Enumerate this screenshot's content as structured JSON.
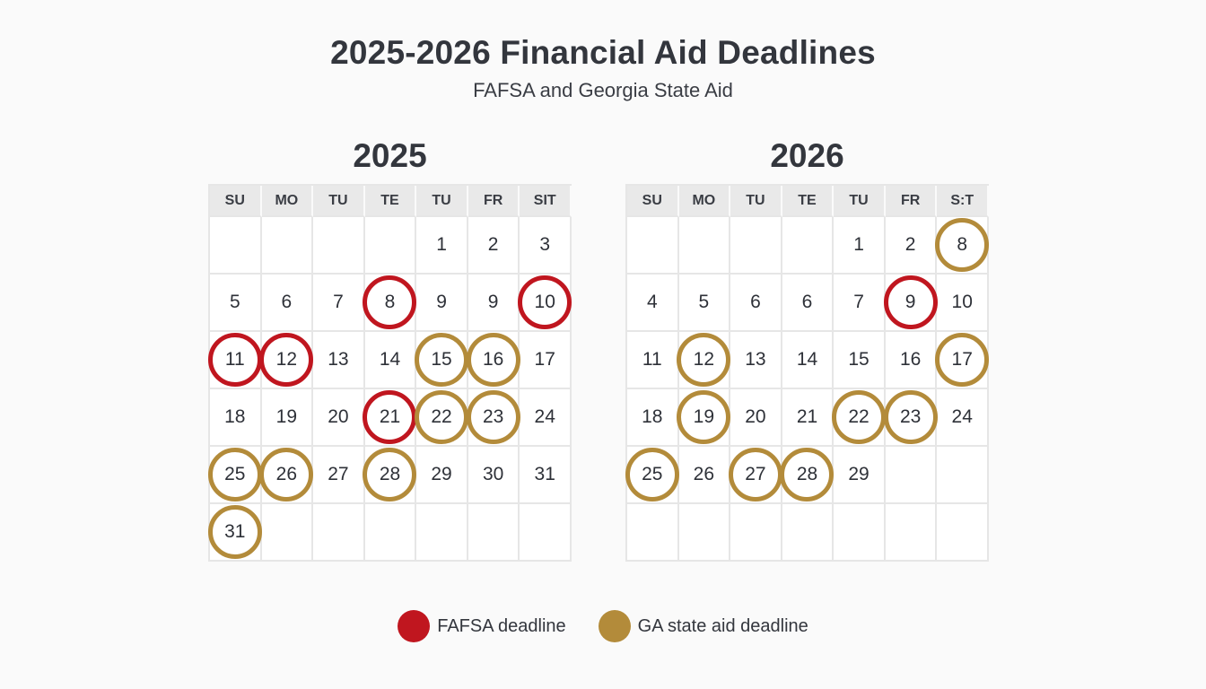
{
  "header": {
    "title": "2025-2026 Financial Aid Deadlines",
    "subtitle": "FAFSA and Georgia State Aid"
  },
  "colors": {
    "fafsa": "#c0161f",
    "ga_state": "#b38b3a",
    "header_bg": "#e9e9e9",
    "grid_line": "#e6e6e6"
  },
  "calendars": [
    {
      "year": "2025",
      "weekdays": [
        "SU",
        "MO",
        "TU",
        "TE",
        "TU",
        "FR",
        "SIT"
      ],
      "rows": [
        [
          {
            "d": ""
          },
          {
            "d": ""
          },
          {
            "d": ""
          },
          {
            "d": ""
          },
          {
            "d": "1"
          },
          {
            "d": "2"
          },
          {
            "d": "3"
          }
        ],
        [
          {
            "d": "5"
          },
          {
            "d": "6"
          },
          {
            "d": "7"
          },
          {
            "d": "8",
            "m": "fafsa"
          },
          {
            "d": "9"
          },
          {
            "d": "9"
          },
          {
            "d": "10",
            "m": "fafsa"
          }
        ],
        [
          {
            "d": "11",
            "m": "fafsa"
          },
          {
            "d": "12",
            "m": "fafsa"
          },
          {
            "d": "13"
          },
          {
            "d": "14"
          },
          {
            "d": "15",
            "m": "ga"
          },
          {
            "d": "16",
            "m": "ga"
          },
          {
            "d": "17"
          }
        ],
        [
          {
            "d": "18"
          },
          {
            "d": "19"
          },
          {
            "d": "20"
          },
          {
            "d": "21",
            "m": "fafsa"
          },
          {
            "d": "22",
            "m": "ga"
          },
          {
            "d": "23",
            "m": "ga"
          },
          {
            "d": "24"
          }
        ],
        [
          {
            "d": "25",
            "m": "ga"
          },
          {
            "d": "26",
            "m": "ga"
          },
          {
            "d": "27"
          },
          {
            "d": "28",
            "m": "ga"
          },
          {
            "d": "29"
          },
          {
            "d": "30"
          },
          {
            "d": "31"
          }
        ],
        [
          {
            "d": "31",
            "m": "ga"
          },
          {
            "d": ""
          },
          {
            "d": ""
          },
          {
            "d": ""
          },
          {
            "d": ""
          },
          {
            "d": ""
          },
          {
            "d": ""
          }
        ]
      ]
    },
    {
      "year": "2026",
      "weekdays": [
        "SU",
        "MO",
        "TU",
        "TE",
        "TU",
        "FR",
        "S:T"
      ],
      "rows": [
        [
          {
            "d": ""
          },
          {
            "d": ""
          },
          {
            "d": ""
          },
          {
            "d": ""
          },
          {
            "d": "1"
          },
          {
            "d": "2"
          },
          {
            "d": "8",
            "m": "ga"
          }
        ],
        [
          {
            "d": "4"
          },
          {
            "d": "5"
          },
          {
            "d": "6"
          },
          {
            "d": "6"
          },
          {
            "d": "7"
          },
          {
            "d": "9",
            "m": "fafsa"
          },
          {
            "d": "10"
          }
        ],
        [
          {
            "d": "11"
          },
          {
            "d": "12",
            "m": "ga"
          },
          {
            "d": "13"
          },
          {
            "d": "14"
          },
          {
            "d": "15"
          },
          {
            "d": "16"
          },
          {
            "d": "17",
            "m": "ga"
          }
        ],
        [
          {
            "d": "18"
          },
          {
            "d": "19",
            "m": "ga"
          },
          {
            "d": "20"
          },
          {
            "d": "21"
          },
          {
            "d": "22",
            "m": "ga"
          },
          {
            "d": "23",
            "m": "ga"
          },
          {
            "d": "24"
          }
        ],
        [
          {
            "d": "25",
            "m": "ga"
          },
          {
            "d": "26"
          },
          {
            "d": "27",
            "m": "ga"
          },
          {
            "d": "28",
            "m": "ga"
          },
          {
            "d": "29"
          },
          {
            "d": ""
          },
          {
            "d": ""
          }
        ],
        [
          {
            "d": ""
          },
          {
            "d": ""
          },
          {
            "d": ""
          },
          {
            "d": ""
          },
          {
            "d": ""
          },
          {
            "d": ""
          },
          {
            "d": ""
          }
        ]
      ]
    }
  ],
  "legend": [
    {
      "key": "fafsa",
      "label": "FAFSA deadline",
      "color": "#c0161f"
    },
    {
      "key": "ga",
      "label": "GA state aid deadline",
      "color": "#b38b3a"
    }
  ]
}
